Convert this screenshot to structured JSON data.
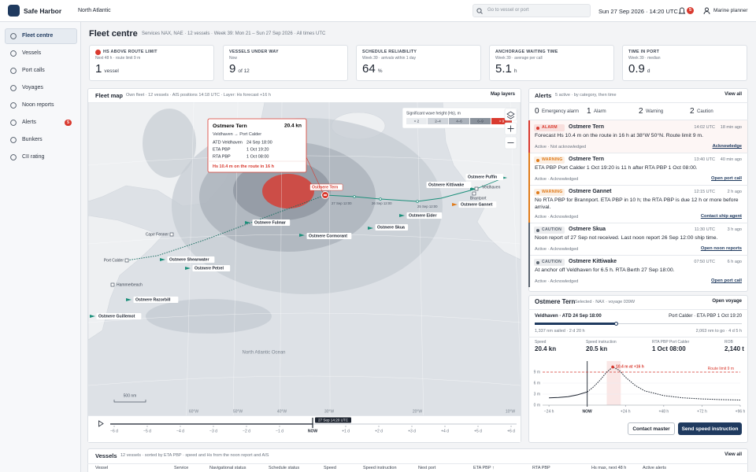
{
  "app": {
    "brand": "Safe Harbor",
    "region": "North Atlantic",
    "search": "Go to vessel or port",
    "datetime": "Sun 27 Sep 2026 · 14:20 UTC",
    "notifications": "5",
    "user": "Marine planner"
  },
  "nav": [
    {
      "label": "Fleet centre"
    },
    {
      "label": "Vessels"
    },
    {
      "label": "Port calls"
    },
    {
      "label": "Voyages"
    },
    {
      "label": "Noon reports"
    },
    {
      "label": "Alerts",
      "badge": "5"
    },
    {
      "label": "Bunkers"
    },
    {
      "label": "CII rating"
    }
  ],
  "header": {
    "title": "Fleet centre",
    "subtitle": "Services NAX, NAE · 12 vessels · Week 39: Mon 21 – Sun 27 Sep 2026 · All times UTC"
  },
  "kpis": [
    {
      "label": "HS ABOVE ROUTE LIMIT",
      "note": "Next 48 h · route limit 9 m",
      "value": "1",
      "unit": "vessel",
      "color": "#d93a2f"
    },
    {
      "label": "VESSELS UNDER WAY",
      "note": "Now",
      "value": "9",
      "unit": "of 12"
    },
    {
      "label": "SCHEDULE RELIABILITY",
      "note": "Week 39 · arrivals within 1 day",
      "value": "64",
      "unit": "%"
    },
    {
      "label": "ANCHORAGE WAITING TIME",
      "note": "Week 39 · average per call",
      "value": "5.1",
      "unit": "h"
    },
    {
      "label": "TIME IN PORT",
      "note": "Week 39 · median",
      "value": "0.9",
      "unit": "d"
    }
  ],
  "map": {
    "title": "Fleet map",
    "subtitle": "Own fleet · 12 vessels · AIS positions 14:18 UTC · Layer: Hs forecast +16 h",
    "layers": "Map layers",
    "legend": {
      "title": "Significant wave height (Hs), m",
      "bins": [
        {
          "label": "< 2",
          "color": "#e9ecef"
        },
        {
          "label": "2–4",
          "color": "#cfd4da"
        },
        {
          "label": "4–6",
          "color": "#abb2bb"
        },
        {
          "label": "6–9",
          "color": "#8a929c"
        },
        {
          "label": "> 9",
          "color": "#d93a2f"
        }
      ]
    },
    "popup": {
      "vessel": "Ostmere Tern",
      "speed": "20.4 kn",
      "route": "Veldhaven → Port Calder",
      "rows": [
        {
          "label": "ATD Veldhaven",
          "value": "24 Sep 18:00"
        },
        {
          "label": "ETA PBP",
          "value": "1 Oct 19:20"
        },
        {
          "label": "RTA PBP",
          "value": "1 Oct 08:00"
        }
      ],
      "warning": "Hs 10.4 m on the route in 16 h"
    },
    "vessels": [
      "Ostmere Tern",
      "Ostmere Kittiwake",
      "Ostmere Puffin",
      "Ostmere Gannet",
      "Ostmere Eider",
      "Ostmere Skua",
      "Ostmere Fulmar",
      "Ostmere Cormorant",
      "Ostmere Shearwater",
      "Ostmere Petrel",
      "Ostmere Razorbill",
      "Ostmere Guillemot"
    ],
    "ports": [
      "Veldhaven",
      "Brantport",
      "Cape Fenner",
      "Port Calder",
      "Hammerbeach"
    ],
    "track_labels": [
      "27 Sep 12:00",
      "26 Sep 12:00",
      "25 Sep 12:00"
    ],
    "ocean_label": "North Atlantic Ocean",
    "scale": "500 nm",
    "longitudes": [
      "60°W",
      "50°W",
      "40°W",
      "30°W",
      "20°W",
      "10°W"
    ],
    "timeline": {
      "now": "27 Sep 14:20 UTC",
      "ticks": [
        "−6 d",
        "−5 d",
        "−4 d",
        "−3 d",
        "−2 d",
        "−1 d",
        "NOW",
        "+1 d",
        "+2 d",
        "+3 d",
        "+4 d",
        "+5 d",
        "+6 d"
      ]
    }
  },
  "alerts": {
    "title": "Alerts",
    "subtitle": "5 active · by category, then time",
    "view_all": "View all",
    "counts": [
      {
        "count": 0,
        "label": "Emergency alarm"
      },
      {
        "count": 1,
        "label": "Alarm"
      },
      {
        "count": 2,
        "label": "Warning"
      },
      {
        "count": 2,
        "label": "Caution"
      }
    ],
    "items": [
      {
        "level": "ALARM",
        "color": "#d93a2f",
        "vessel": "Ostmere Tern",
        "time": "14:02 UTC",
        "ago": "18 min ago",
        "message": "Forecast Hs 10.4 m on the route in 16 h at 38°W 50°N. Route limit 9 m.",
        "status": "Active · Not acknowledged",
        "action": "Acknowledge"
      },
      {
        "level": "WARNING",
        "color": "#e07b1a",
        "vessel": "Ostmere Tern",
        "time": "13:40 UTC",
        "ago": "40 min ago",
        "message": "ETA PBP Port Calder 1 Oct 19:20 is 11 h after RTA PBP 1 Oct 08:00.",
        "status": "Active · Acknowledged",
        "action": "Open port call"
      },
      {
        "level": "WARNING",
        "color": "#e07b1a",
        "vessel": "Ostmere Gannet",
        "time": "12:15 UTC",
        "ago": "2 h ago",
        "message": "No RTA PBP for Brannport. ETA PBP in 10 h; the RTA PBP is due 12 h or more before arrival.",
        "status": "Active · Acknowledged",
        "action": "Contact ship agent"
      },
      {
        "level": "CAUTION",
        "color": "#5b6470",
        "vessel": "Ostmere Skua",
        "time": "11:30 UTC",
        "ago": "3 h ago",
        "message": "Noon report of 27 Sep not received. Last noon report 26 Sep 12:00 ship time.",
        "status": "Active · Acknowledged",
        "action": "Open noon reports"
      },
      {
        "level": "CAUTION",
        "color": "#5b6470",
        "vessel": "Ostmere Kittiwake",
        "time": "07:50 UTC",
        "ago": "6 h ago",
        "message": "At anchor off Veldhaven for 6.5 h. RTA Berth 27 Sep 18:00.",
        "status": "Active · Acknowledged",
        "action": "Open port call"
      }
    ]
  },
  "vessel": {
    "name": "Ostmere Tern",
    "subtitle": "Selected · NAX · voyage 039W",
    "open": "Open voyage",
    "origin": "Veldhaven · ATD 24 Sep 18:00",
    "destination": "Port Calder · ETA PBP 1 Oct 19:20",
    "sailed": "1,337 nm sailed · 2 d 20 h",
    "to_go": "2,063 nm to go · 4 d 5 h",
    "stats": [
      {
        "label": "Speed",
        "value": "20.4 kn"
      },
      {
        "label": "Speed instruction",
        "value": "20.5 kn"
      },
      {
        "label": "RTA PBP Port Calder",
        "value": "1 Oct 08:00"
      },
      {
        "label": "ROB",
        "value": "2,140 t"
      }
    ],
    "actions": [
      "Contact master",
      "Send speed instruction"
    ]
  },
  "chart_data": {
    "type": "line",
    "x": [
      -24,
      -18,
      -12,
      -6,
      0,
      4,
      8,
      12,
      16,
      20,
      24,
      30,
      36,
      48,
      60,
      72,
      84,
      96
    ],
    "values": [
      2.0,
      2.1,
      2.3,
      2.8,
      3.6,
      5.0,
      6.8,
      8.9,
      10.4,
      9.5,
      7.6,
      5.4,
      3.9,
      2.6,
      2.0,
      1.7,
      1.5,
      1.4
    ],
    "color": "#1d2430",
    "xlim": [
      -28,
      96
    ],
    "xticks": [
      {
        "value": -24,
        "label": "−24 h"
      },
      {
        "value": 0,
        "label": "NOW"
      },
      {
        "value": 24,
        "label": "+24 h"
      },
      {
        "value": 48,
        "label": "+48 h"
      },
      {
        "value": 72,
        "label": "+72 h"
      },
      {
        "value": 96,
        "label": "+96 h"
      }
    ],
    "ylim": [
      0,
      12
    ],
    "yticks": [
      {
        "value": 0,
        "label": "0 m"
      },
      {
        "value": 3,
        "label": "3 m"
      },
      {
        "value": 6,
        "label": "6 m"
      },
      {
        "value": 9,
        "label": "9 m"
      }
    ],
    "grid": true,
    "threshold": {
      "value": 9,
      "label": "Route limit 9 m",
      "color": "#d93a2f"
    },
    "annotation": {
      "x": 16,
      "y": 10.4,
      "label": "10.4 m at +16 h"
    }
  },
  "vessels_table": {
    "title": "Vessels",
    "subtitle": "12 vessels · sorted by ETA PBP · speed and Hs from the noon report and AIS",
    "view_all": "View all",
    "columns": [
      "Vessel",
      "Service",
      "Navigational status",
      "Schedule status",
      "Speed",
      "Speed instruction",
      "Next port",
      "ETA PBP ↑",
      "RTA PBP",
      "Hs max, next 48 h",
      "Active alerts"
    ]
  }
}
